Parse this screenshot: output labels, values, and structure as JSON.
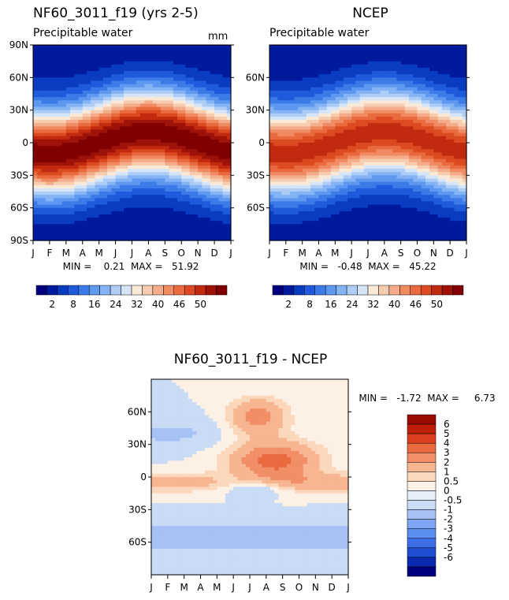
{
  "colors": {
    "seq_scale": [
      "#00007f",
      "#001a9e",
      "#0a3cc2",
      "#1f5adc",
      "#3c7ae8",
      "#5e98f0",
      "#84b4f4",
      "#aecdf6",
      "#d6e6f8",
      "#fbe9d8",
      "#f7cdb0",
      "#f4ad8a",
      "#f08a62",
      "#ea6a40",
      "#dc4a22",
      "#c22a10",
      "#9e1208",
      "#800000"
    ],
    "diff_scale": [
      "#00007f",
      "#0a2ab0",
      "#1f4ed4",
      "#3c6ee6",
      "#5a8ef0",
      "#7ea6f2",
      "#a6c2f4",
      "#cadbf6",
      "#e6eefa",
      "#fdf0e4",
      "#fbd7bc",
      "#f7b592",
      "#f18e66",
      "#ea6a40",
      "#dc4020",
      "#bf1e0a",
      "#9a0a00"
    ]
  },
  "chart_data": [
    {
      "type": "heatmap",
      "title": "NF60_3011_f19 (yrs 2-5)",
      "subtitle": "Precipitable water",
      "units": "mm",
      "x": [
        "J",
        "F",
        "M",
        "A",
        "M",
        "J",
        "J",
        "A",
        "S",
        "O",
        "N",
        "D",
        "J"
      ],
      "y": [
        "90S",
        "60S",
        "30S",
        "0",
        "30N",
        "60N",
        "90N"
      ],
      "ylim": [
        -90,
        90
      ],
      "stats": "MIN =    0.21  MAX =   51.92",
      "min": 0.21,
      "max": 51.92
    },
    {
      "type": "heatmap",
      "title": "NCEP",
      "subtitle": "Precipitable water",
      "x": [
        "J",
        "F",
        "M",
        "A",
        "M",
        "J",
        "J",
        "A",
        "S",
        "O",
        "N",
        "D",
        "J"
      ],
      "y": [
        "60S",
        "30S",
        "0",
        "30N",
        "60N"
      ],
      "ylim": [
        -90,
        90
      ],
      "stats": "MIN =   -0.48  MAX =   45.22",
      "min": -0.48,
      "max": 45.22
    },
    {
      "type": "heatmap",
      "title": "NF60_3011_f19 - NCEP",
      "x": [
        "J",
        "F",
        "M",
        "A",
        "M",
        "J",
        "J",
        "A",
        "S",
        "O",
        "N",
        "D",
        "J"
      ],
      "y": [
        "60S",
        "30S",
        "0",
        "30N",
        "60N"
      ],
      "ylim": [
        -90,
        90
      ],
      "stats": "MIN =   -1.72  MAX =     6.73",
      "min": -1.72,
      "max": 6.73
    }
  ],
  "colorbar_seq": {
    "labels": [
      "2",
      "8",
      "16",
      "24",
      "32",
      "40",
      "46",
      "50"
    ],
    "levels": [
      2,
      5,
      8,
      12,
      16,
      20,
      24,
      28,
      32,
      36,
      40,
      44,
      46,
      48,
      50
    ]
  },
  "colorbar_diff": {
    "labels": [
      "6",
      "5",
      "4",
      "3",
      "2",
      "1",
      "0.5",
      "0",
      "-0.5",
      "-1",
      "-2",
      "-3",
      "-4",
      "-5",
      "-6"
    ],
    "levels": [
      6,
      5,
      4,
      3,
      2,
      1,
      0.5,
      0,
      -0.5,
      -1,
      -2,
      -3,
      -4,
      -5,
      -6
    ]
  }
}
